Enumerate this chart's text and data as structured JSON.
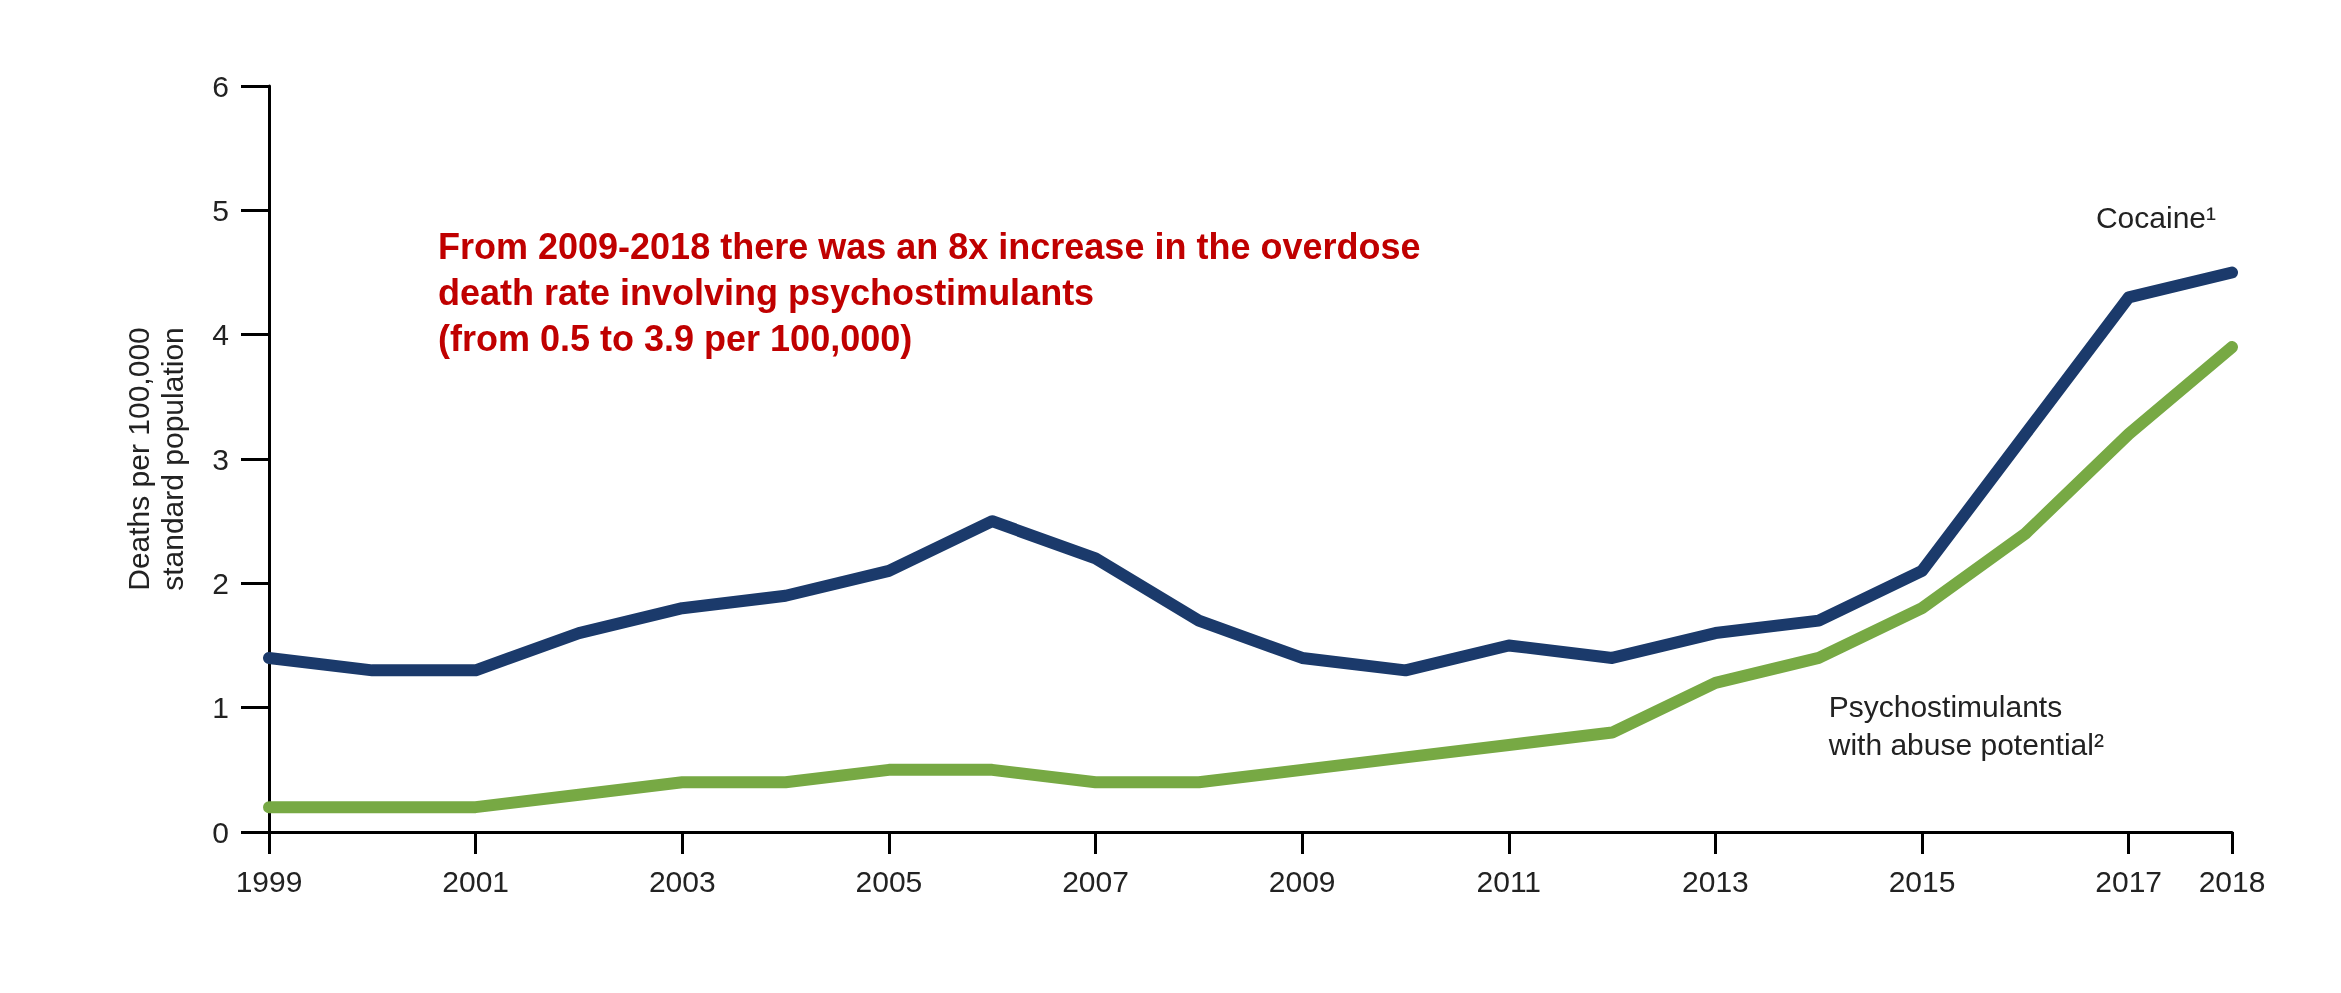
{
  "chart_data": {
    "type": "line",
    "ylabel": "Deaths per 100,000\nstandard population",
    "x": [
      1999,
      2000,
      2001,
      2002,
      2003,
      2004,
      2005,
      2006,
      2007,
      2008,
      2009,
      2010,
      2011,
      2012,
      2013,
      2014,
      2015,
      2016,
      2017,
      2018
    ],
    "series": [
      {
        "name": "Cocaine¹",
        "color": "#1b3a6b",
        "values": [
          1.4,
          1.3,
          1.3,
          1.6,
          1.8,
          1.9,
          2.1,
          2.5,
          2.2,
          1.7,
          1.4,
          1.3,
          1.5,
          1.4,
          1.6,
          1.7,
          2.1,
          3.2,
          4.3,
          4.5
        ]
      },
      {
        "name": "Psychostimulants\nwith abuse potential²",
        "color": "#77a944",
        "values": [
          0.2,
          0.2,
          0.2,
          0.3,
          0.4,
          0.4,
          0.5,
          0.5,
          0.4,
          0.4,
          0.5,
          0.6,
          0.7,
          0.8,
          1.2,
          1.4,
          1.8,
          2.4,
          3.2,
          3.9
        ]
      }
    ],
    "xlim": [
      1999,
      2018
    ],
    "xticks": [
      1999,
      2001,
      2003,
      2005,
      2007,
      2009,
      2011,
      2013,
      2015,
      2017,
      2018
    ],
    "ylim": [
      0,
      6
    ],
    "yticks": [
      0,
      1,
      2,
      3,
      4,
      5,
      6
    ],
    "annotations": [
      "From 2009-2018 there was an 8x increase in the overdose\ndeath rate involving psychostimulants\n(from 0.5 to 3.9 per 100,000)"
    ],
    "grid": false,
    "legend": false,
    "line_style": "solid"
  }
}
